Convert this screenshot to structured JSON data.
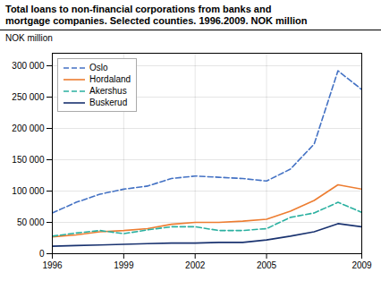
{
  "chart_data": {
    "type": "line",
    "title": "Total loans to non-financial corporations from banks and",
    "subtitle": "mortgage companies. Selected counties. 1996.2009. NOK million",
    "ylabel": "NOK million",
    "x": [
      1996,
      1997,
      1998,
      1999,
      2000,
      2001,
      2002,
      2003,
      2004,
      2005,
      2006,
      2007,
      2008,
      2009
    ],
    "series": [
      {
        "name": "Oslo",
        "color": "#4472c4",
        "line_style": "dashed",
        "values": [
          65000,
          82000,
          95000,
          103000,
          108000,
          120000,
          124000,
          122000,
          120000,
          116000,
          135000,
          175000,
          292000,
          262000
        ]
      },
      {
        "name": "Hordaland",
        "color": "#ed7d31",
        "line_style": "solid",
        "values": [
          27000,
          30000,
          35000,
          37000,
          40000,
          47000,
          50000,
          50000,
          52000,
          55000,
          68000,
          85000,
          110000,
          103000
        ]
      },
      {
        "name": "Akershus",
        "color": "#2ab0a0",
        "line_style": "dashed",
        "values": [
          28000,
          33000,
          37000,
          32000,
          38000,
          43000,
          43000,
          37000,
          37000,
          40000,
          58000,
          65000,
          82000,
          66000
        ]
      },
      {
        "name": "Buskerud",
        "color": "#1a3370",
        "line_style": "solid",
        "values": [
          12000,
          13000,
          14000,
          15000,
          16000,
          17000,
          17000,
          18000,
          18000,
          22000,
          28000,
          35000,
          48000,
          43000
        ]
      }
    ],
    "xlim": [
      1996,
      2009
    ],
    "xticks": [
      1996,
      1999,
      2002,
      2005,
      2009
    ],
    "ylim": [
      0,
      320000
    ],
    "yticks": [
      0,
      {
        "value": 50000,
        "label": "50 000"
      },
      {
        "value": 100000,
        "label": "100 000"
      },
      {
        "value": 150000,
        "label": "150 000"
      },
      {
        "value": 200000,
        "label": "200 000"
      },
      {
        "value": 250000,
        "label": "250 000"
      },
      {
        "value": 300000,
        "label": "300 000"
      }
    ],
    "grid": true,
    "legend": "upper left"
  }
}
